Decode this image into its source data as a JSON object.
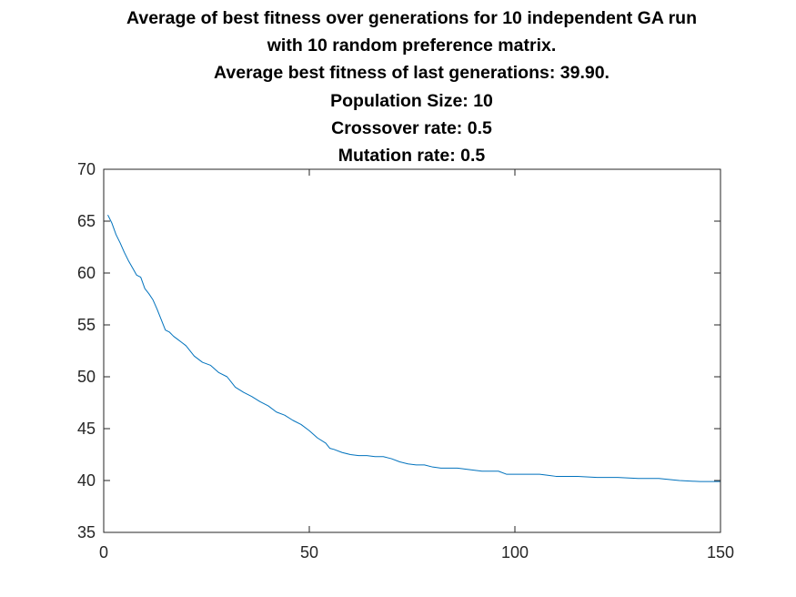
{
  "title_lines": [
    "Average of best fitness over generations for 10 independent GA run",
    "with 10 random preference matrix.",
    "Average best fitness of last generations: 39.90.",
    "Population Size: 10",
    "Crossover rate: 0.5",
    "Mutation rate: 0.5"
  ],
  "chart_data": {
    "type": "line",
    "title": "Average of best fitness over generations for 10 independent GA run with 10 random preference matrix. Average best fitness of last generations: 39.90. Population Size: 10 Crossover rate: 0.5 Mutation rate: 0.5",
    "xlabel": "",
    "ylabel": "",
    "xlim": [
      0,
      150
    ],
    "ylim": [
      35,
      70
    ],
    "xticks": [
      0,
      50,
      100,
      150
    ],
    "yticks": [
      35,
      40,
      45,
      50,
      55,
      60,
      65,
      70
    ],
    "grid": false,
    "line_color": "#0072BD",
    "series": [
      {
        "x": [
          1,
          2,
          3,
          4,
          5,
          6,
          7,
          8,
          9,
          10,
          11,
          12,
          13,
          14,
          15,
          16,
          17,
          18,
          19,
          20,
          22,
          24,
          26,
          28,
          30,
          32,
          34,
          36,
          38,
          40,
          42,
          44,
          46,
          48,
          50,
          52,
          54,
          55,
          56,
          58,
          60,
          62,
          64,
          66,
          68,
          70,
          72,
          74,
          76,
          78,
          80,
          82,
          84,
          86,
          88,
          90,
          92,
          94,
          96,
          98,
          100,
          102,
          104,
          106,
          108,
          110,
          115,
          120,
          125,
          130,
          135,
          140,
          145,
          150
        ],
        "values": [
          65.6,
          64.8,
          63.7,
          62.9,
          62.0,
          61.2,
          60.5,
          59.8,
          59.6,
          58.5,
          58.0,
          57.4,
          56.5,
          55.5,
          54.5,
          54.3,
          53.9,
          53.6,
          53.3,
          53.0,
          52.0,
          51.4,
          51.1,
          50.4,
          50.0,
          49.0,
          48.5,
          48.1,
          47.6,
          47.2,
          46.6,
          46.3,
          45.8,
          45.4,
          44.8,
          44.1,
          43.6,
          43.1,
          43.0,
          42.7,
          42.5,
          42.4,
          42.4,
          42.3,
          42.3,
          42.1,
          41.8,
          41.6,
          41.5,
          41.5,
          41.3,
          41.2,
          41.2,
          41.2,
          41.1,
          41.0,
          40.9,
          40.9,
          40.9,
          40.6,
          40.6,
          40.6,
          40.6,
          40.6,
          40.5,
          40.4,
          40.4,
          40.3,
          40.3,
          40.2,
          40.2,
          40.0,
          39.9,
          39.9
        ]
      }
    ]
  }
}
